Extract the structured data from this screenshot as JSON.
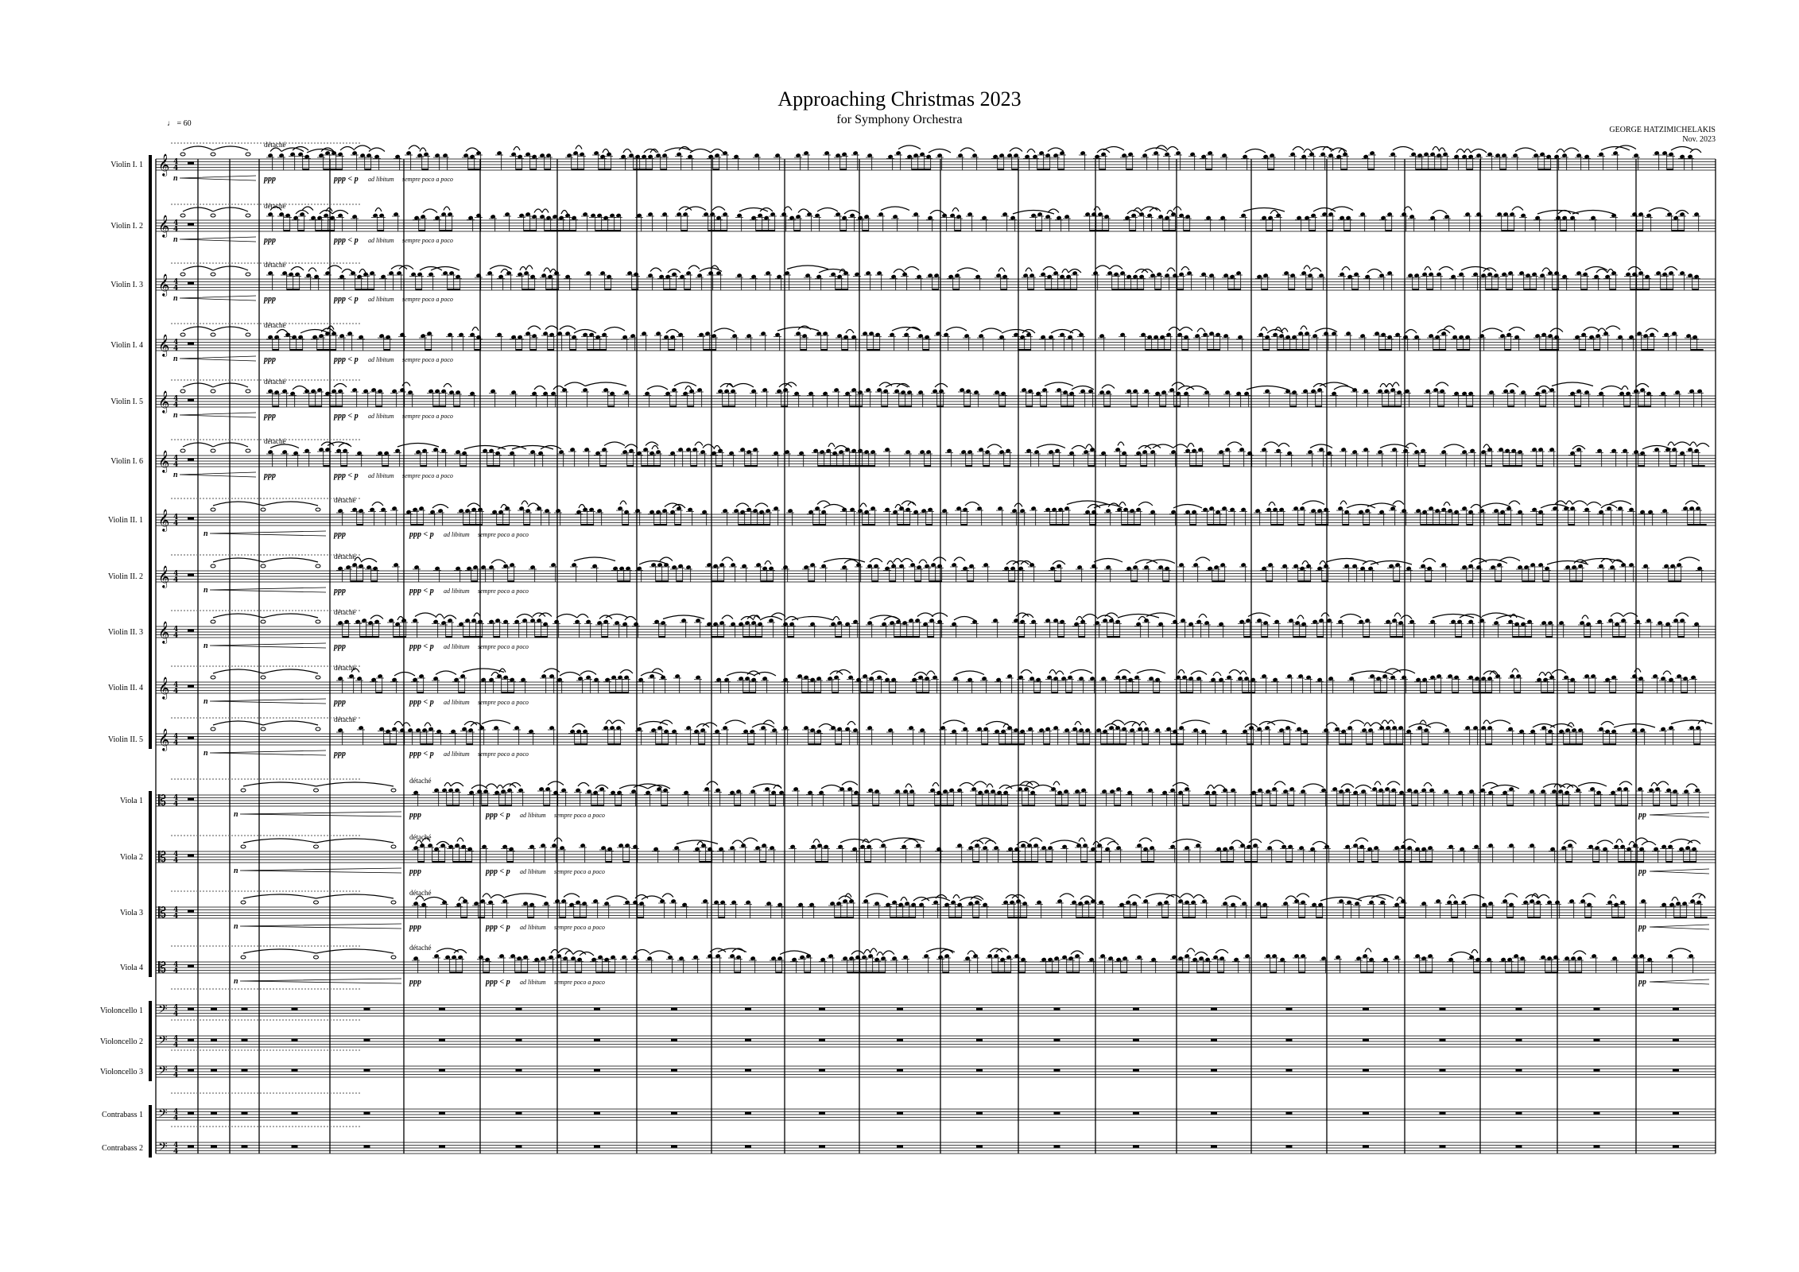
{
  "header": {
    "title": "Approaching Christmas 2023",
    "subtitle": "for Symphony Orchestra",
    "composer": "GEORGE HATZIMICHELAKIS",
    "date": "Nov. 2023",
    "tempo": "♩ = 60"
  },
  "markings": {
    "articulation": "détaché",
    "niente": "n",
    "dyn_start": "ppp",
    "dyn_cresc": "ppp <  p",
    "ad_lib": "ad libitum",
    "sempre": "sempre poco a poco",
    "dyn_end": "pp"
  },
  "instruments": [
    {
      "label": "Violin I. 1",
      "group": "vn1",
      "clef": "treble"
    },
    {
      "label": "Violin I. 2",
      "group": "vn1",
      "clef": "treble"
    },
    {
      "label": "Violin I. 3",
      "group": "vn1",
      "clef": "treble"
    },
    {
      "label": "Violin I. 4",
      "group": "vn1",
      "clef": "treble"
    },
    {
      "label": "Violin I. 5",
      "group": "vn1",
      "clef": "treble"
    },
    {
      "label": "Violin I. 6",
      "group": "vn1",
      "clef": "treble"
    },
    {
      "label": "Violin II. 1",
      "group": "vn2",
      "clef": "treble"
    },
    {
      "label": "Violin II. 2",
      "group": "vn2",
      "clef": "treble"
    },
    {
      "label": "Violin II. 3",
      "group": "vn2",
      "clef": "treble"
    },
    {
      "label": "Violin II. 4",
      "group": "vn2",
      "clef": "treble"
    },
    {
      "label": "Violin II. 5",
      "group": "vn2",
      "clef": "treble"
    },
    {
      "label": "Viola 1",
      "group": "va",
      "clef": "alto"
    },
    {
      "label": "Viola 2",
      "group": "va",
      "clef": "alto"
    },
    {
      "label": "Viola 3",
      "group": "va",
      "clef": "alto"
    },
    {
      "label": "Viola 4",
      "group": "va",
      "clef": "alto"
    },
    {
      "label": "Violoncello 1",
      "group": "vc",
      "clef": "bass"
    },
    {
      "label": "Violoncello 2",
      "group": "vc",
      "clef": "bass"
    },
    {
      "label": "Violoncello 3",
      "group": "vc",
      "clef": "bass"
    },
    {
      "label": "Contrabass 1",
      "group": "cb",
      "clef": "bass"
    },
    {
      "label": "Contrabass 2",
      "group": "cb",
      "clef": "bass"
    }
  ],
  "time_signature": "4/4"
}
